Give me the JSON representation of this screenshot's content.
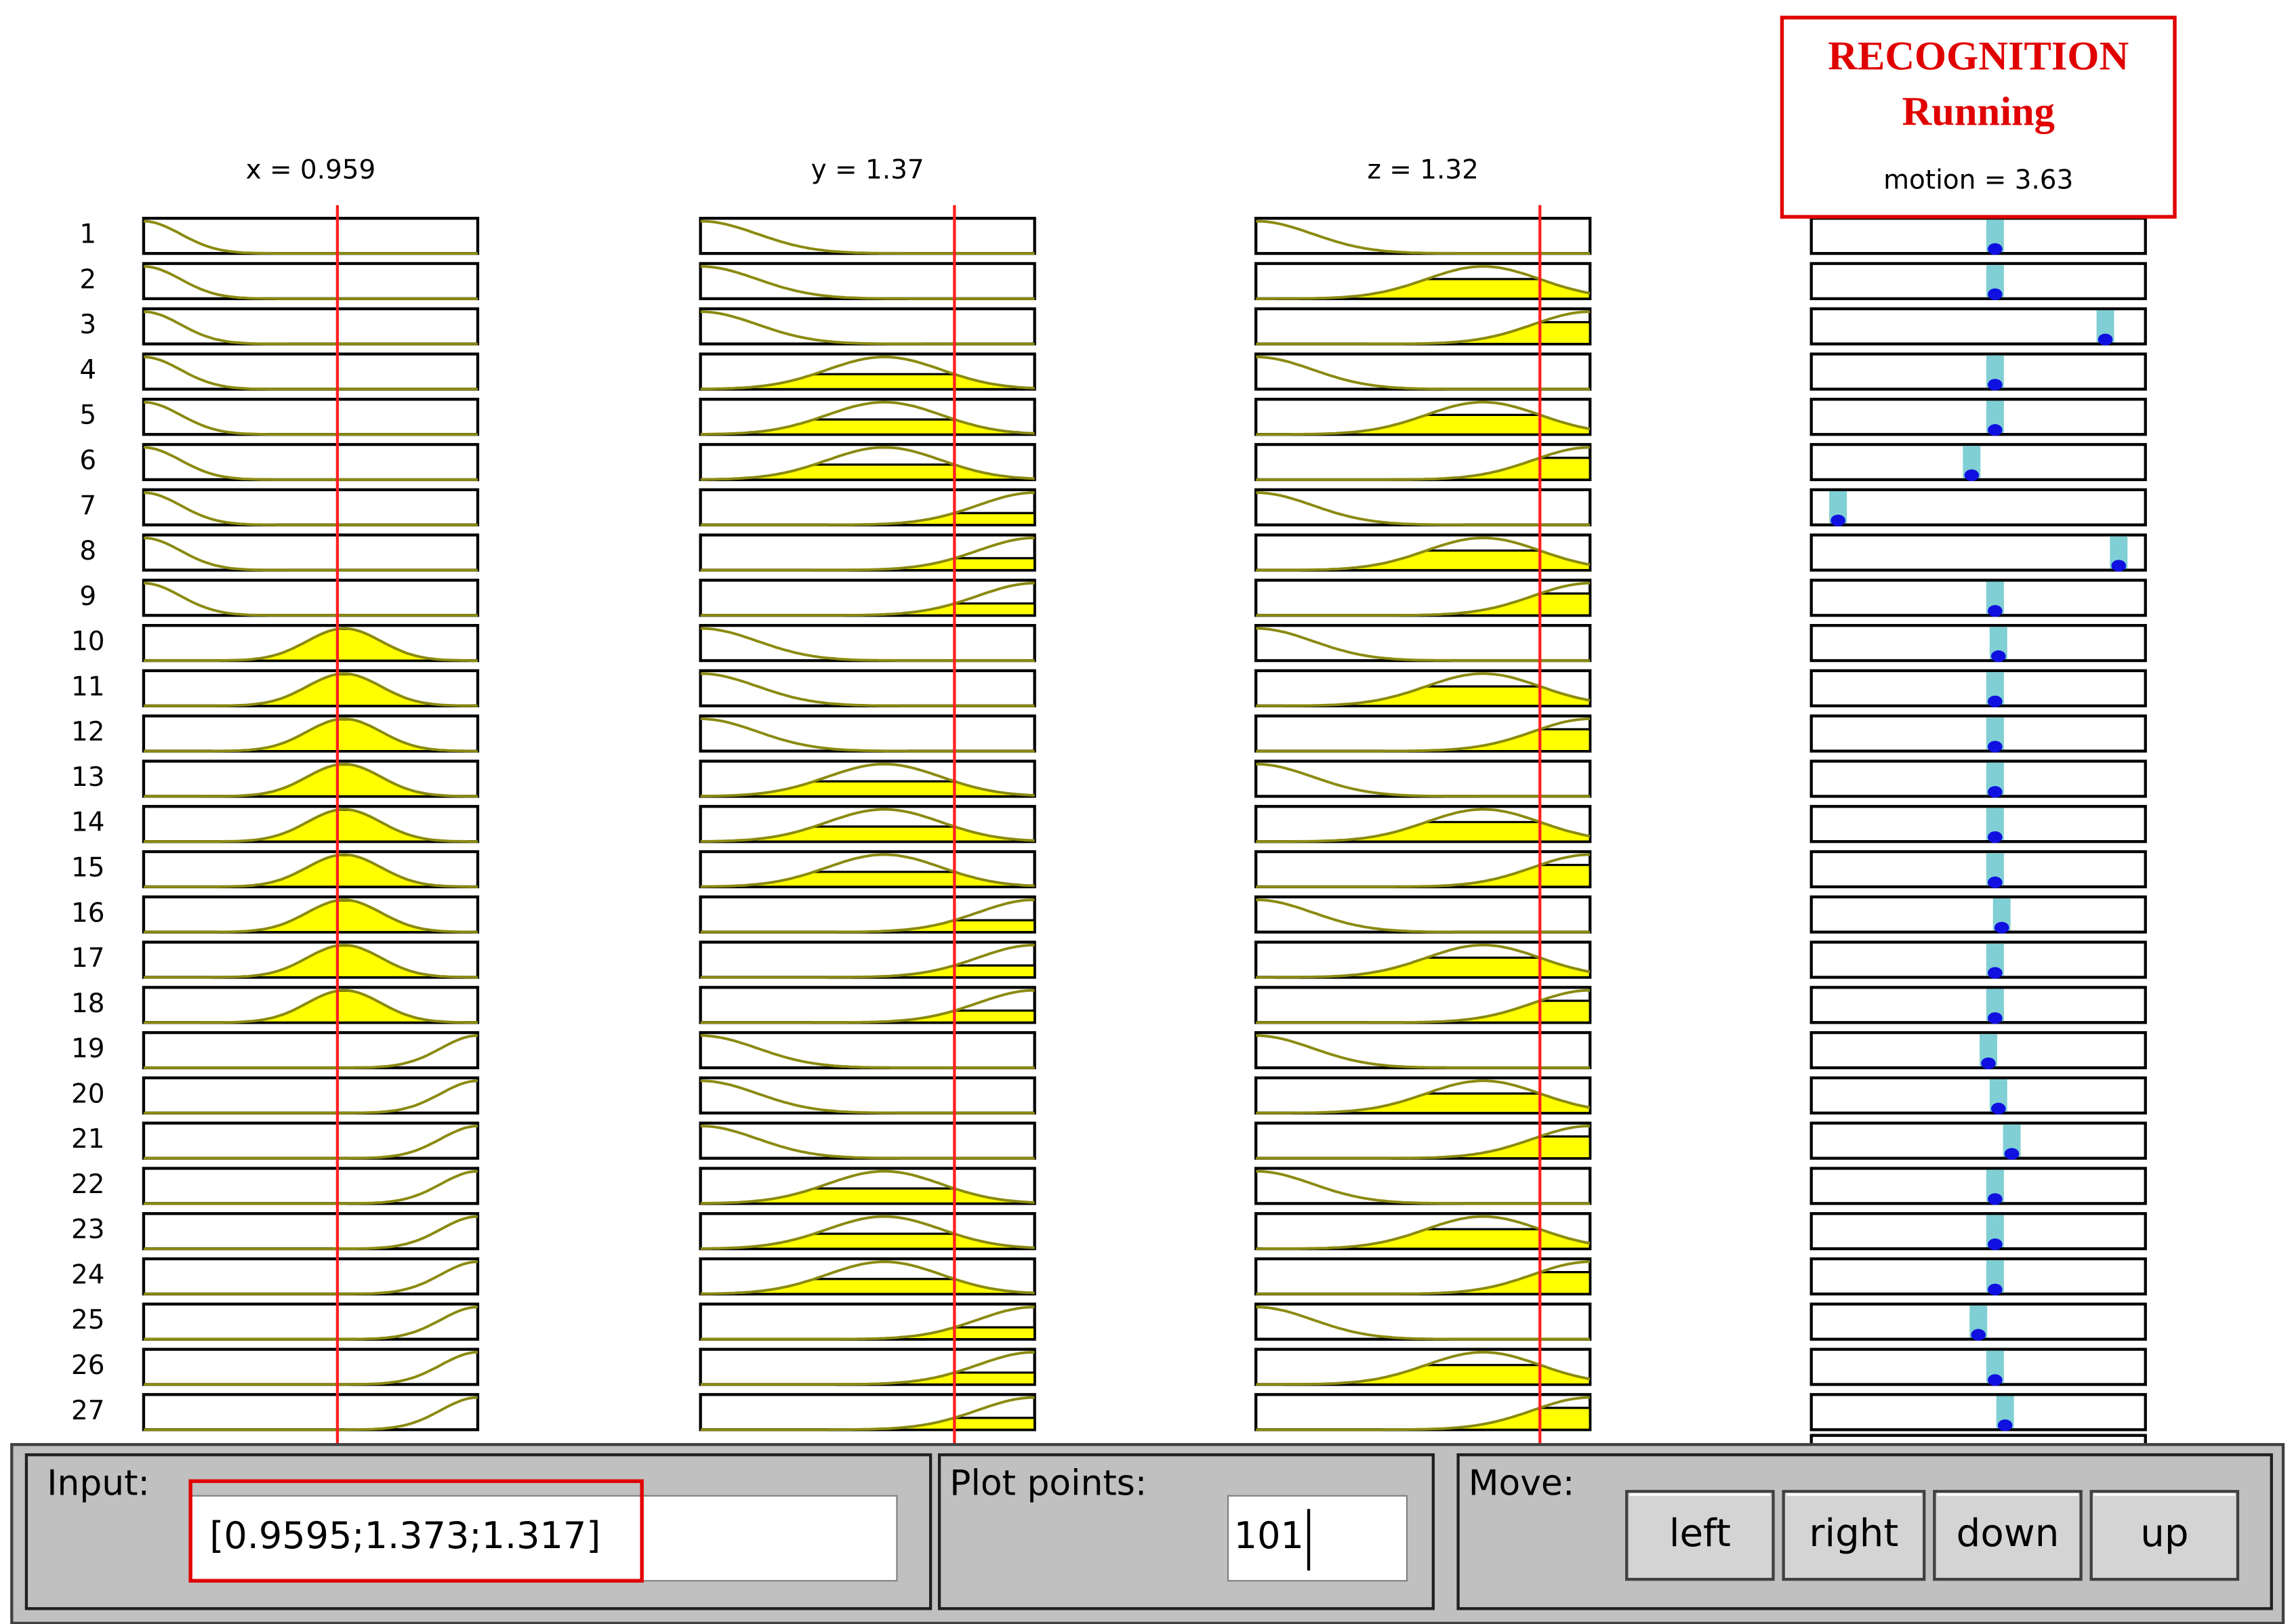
{
  "rule_viewer": {
    "inputs": [
      "x = 0.959",
      "y = 1.37",
      "z = 1.32"
    ],
    "output": {
      "status_title": "RECOGNITION",
      "status": "Running",
      "label": "motion = 3.63"
    },
    "rules": [
      1,
      2,
      3,
      4,
      5,
      6,
      7,
      8,
      9,
      10,
      11,
      12,
      13,
      14,
      15,
      16,
      17,
      18,
      19,
      20,
      21,
      22,
      23,
      24,
      25,
      26,
      27
    ]
  },
  "controls": {
    "input_label": "Input:",
    "input_value": "[0.9595;1.373;1.317]",
    "plot_points_label": "Plot points:",
    "plot_points_value": "101",
    "move_label": "Move:",
    "buttons": [
      "left",
      "right",
      "down",
      "up"
    ]
  }
}
